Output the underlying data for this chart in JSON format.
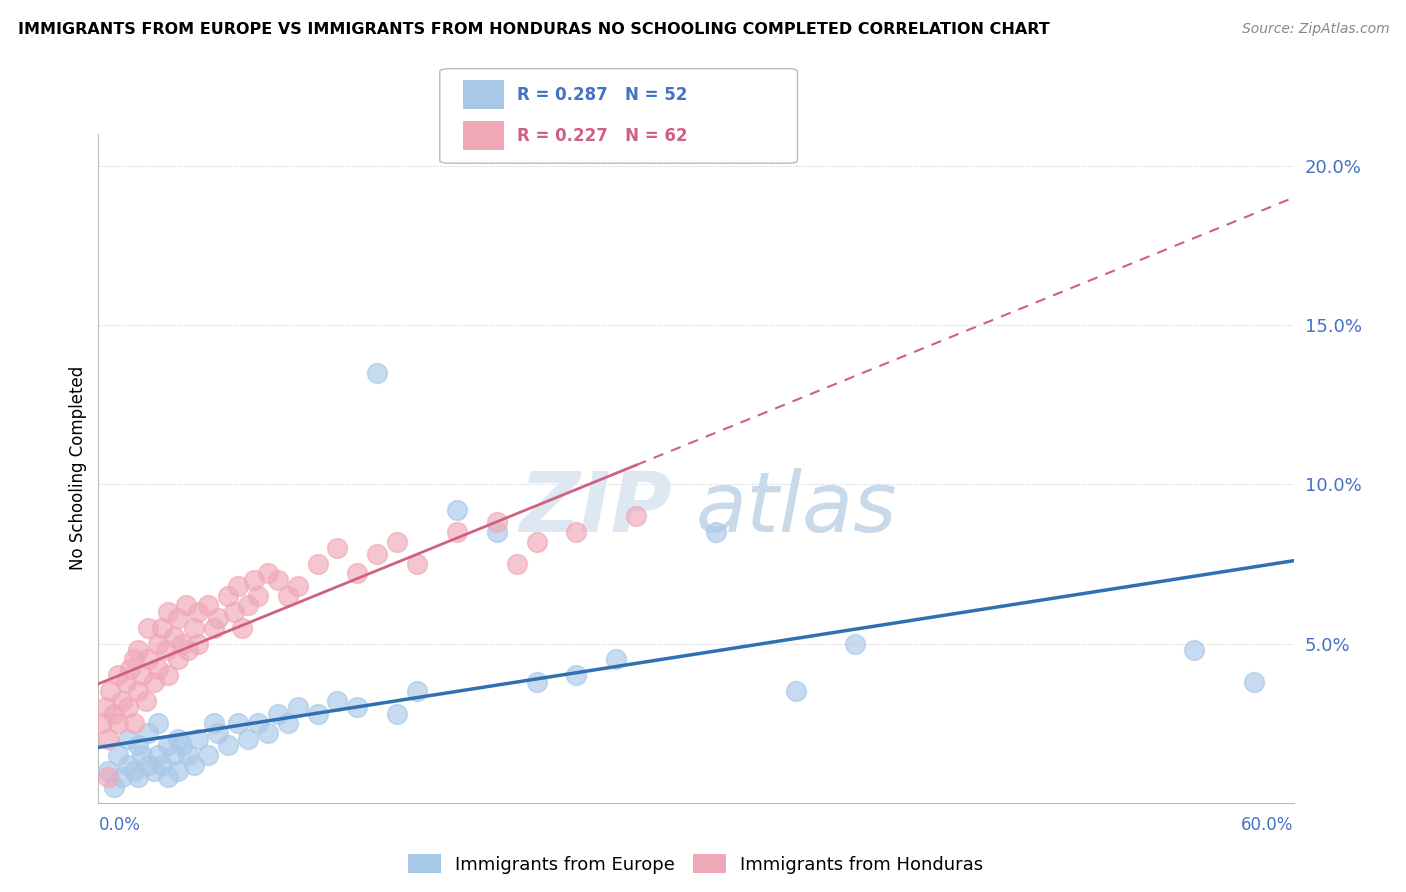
{
  "title": "IMMIGRANTS FROM EUROPE VS IMMIGRANTS FROM HONDURAS NO SCHOOLING COMPLETED CORRELATION CHART",
  "source": "Source: ZipAtlas.com",
  "ylabel": "No Schooling Completed",
  "xlim": [
    0.0,
    0.6
  ],
  "ylim": [
    0.0,
    0.21
  ],
  "yticks": [
    0.05,
    0.1,
    0.15,
    0.2
  ],
  "ytick_labels": [
    "5.0%",
    "10.0%",
    "15.0%",
    "20.0%"
  ],
  "legend_label_europe": "Immigrants from Europe",
  "legend_label_honduras": "Immigrants from Honduras",
  "color_europe": "#a8c8e8",
  "color_honduras": "#f0a8b8",
  "color_europe_line": "#3070b0",
  "color_honduras_line": "#d06080",
  "watermark_zip": "ZIP",
  "watermark_atlas": "atlas",
  "europe_x": [
    0.005,
    0.008,
    0.01,
    0.012,
    0.015,
    0.015,
    0.018,
    0.02,
    0.02,
    0.022,
    0.025,
    0.025,
    0.028,
    0.03,
    0.03,
    0.032,
    0.035,
    0.035,
    0.038,
    0.04,
    0.04,
    0.042,
    0.045,
    0.048,
    0.05,
    0.055,
    0.058,
    0.06,
    0.065,
    0.07,
    0.075,
    0.08,
    0.085,
    0.09,
    0.095,
    0.1,
    0.11,
    0.12,
    0.13,
    0.14,
    0.15,
    0.16,
    0.18,
    0.2,
    0.22,
    0.24,
    0.26,
    0.31,
    0.35,
    0.38,
    0.55,
    0.58
  ],
  "europe_y": [
    0.01,
    0.005,
    0.015,
    0.008,
    0.012,
    0.02,
    0.01,
    0.018,
    0.008,
    0.015,
    0.012,
    0.022,
    0.01,
    0.015,
    0.025,
    0.012,
    0.018,
    0.008,
    0.015,
    0.02,
    0.01,
    0.018,
    0.015,
    0.012,
    0.02,
    0.015,
    0.025,
    0.022,
    0.018,
    0.025,
    0.02,
    0.025,
    0.022,
    0.028,
    0.025,
    0.03,
    0.028,
    0.032,
    0.03,
    0.135,
    0.028,
    0.035,
    0.092,
    0.085,
    0.038,
    0.04,
    0.045,
    0.085,
    0.035,
    0.05,
    0.048,
    0.038
  ],
  "honduras_x": [
    0.002,
    0.004,
    0.005,
    0.006,
    0.008,
    0.01,
    0.01,
    0.012,
    0.014,
    0.015,
    0.016,
    0.018,
    0.018,
    0.02,
    0.02,
    0.022,
    0.024,
    0.025,
    0.025,
    0.028,
    0.03,
    0.03,
    0.032,
    0.034,
    0.035,
    0.035,
    0.038,
    0.04,
    0.04,
    0.042,
    0.044,
    0.045,
    0.048,
    0.05,
    0.05,
    0.055,
    0.058,
    0.06,
    0.065,
    0.068,
    0.07,
    0.072,
    0.075,
    0.078,
    0.08,
    0.085,
    0.09,
    0.095,
    0.1,
    0.11,
    0.12,
    0.13,
    0.14,
    0.15,
    0.16,
    0.18,
    0.2,
    0.21,
    0.22,
    0.24,
    0.27,
    0.005
  ],
  "honduras_y": [
    0.025,
    0.03,
    0.02,
    0.035,
    0.028,
    0.04,
    0.025,
    0.032,
    0.038,
    0.03,
    0.042,
    0.025,
    0.045,
    0.035,
    0.048,
    0.04,
    0.032,
    0.045,
    0.055,
    0.038,
    0.05,
    0.042,
    0.055,
    0.048,
    0.04,
    0.06,
    0.052,
    0.045,
    0.058,
    0.05,
    0.062,
    0.048,
    0.055,
    0.06,
    0.05,
    0.062,
    0.055,
    0.058,
    0.065,
    0.06,
    0.068,
    0.055,
    0.062,
    0.07,
    0.065,
    0.072,
    0.07,
    0.065,
    0.068,
    0.075,
    0.08,
    0.072,
    0.078,
    0.082,
    0.075,
    0.085,
    0.088,
    0.075,
    0.082,
    0.085,
    0.09,
    0.008
  ]
}
